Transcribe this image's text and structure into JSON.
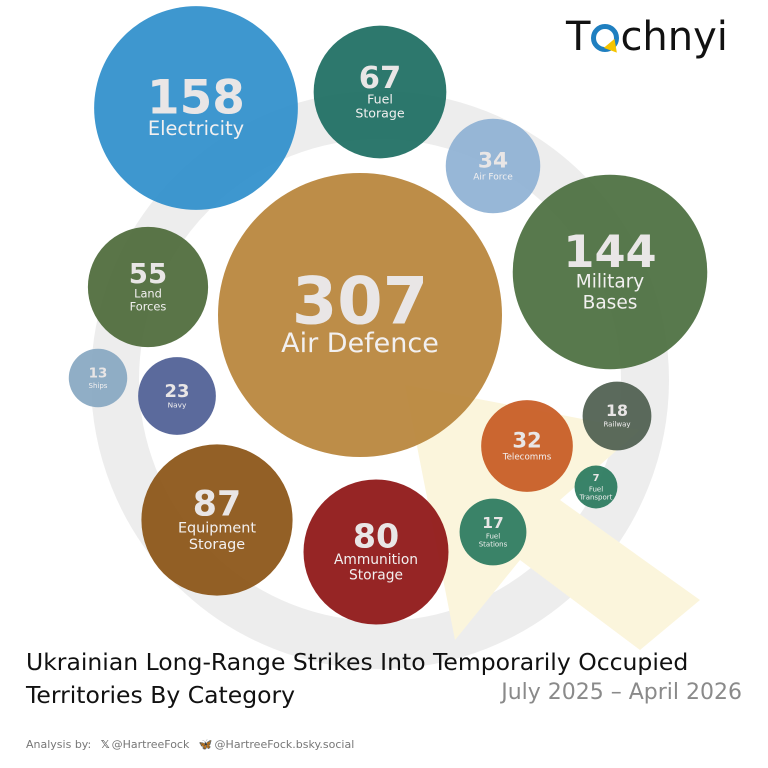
{
  "brand": {
    "logo_prefix": "T",
    "logo_suffix": "chnyi"
  },
  "footer": {
    "analysis_label": "Analysis by:",
    "x_icon": "x-icon",
    "x_handle": "@HartreeFock",
    "bsky_icon": "butterfly-icon",
    "bsky_handle": "@HartreeFock.bsky.social"
  },
  "chart_data": {
    "type": "bubble",
    "title": "Ukrainian Long-Range Strikes Into Temporarily Occupied Territories By Category",
    "subtitle": "July 2025 – April 2026",
    "bubbles": [
      {
        "label": "Air Defence",
        "value": 307,
        "color": "#b8843a"
      },
      {
        "label": "Electricity",
        "value": 158,
        "color": "#2f8fcb"
      },
      {
        "label": "Military Bases",
        "value": 144,
        "color": "#4b6f3f"
      },
      {
        "label": "Equipment Storage",
        "value": 87,
        "color": "#8b5416"
      },
      {
        "label": "Ammunition Storage",
        "value": 80,
        "color": "#8e1414"
      },
      {
        "label": "Fuel Storage",
        "value": 67,
        "color": "#1d6e62"
      },
      {
        "label": "Land Forces",
        "value": 55,
        "color": "#4d6b3a"
      },
      {
        "label": "Air Force",
        "value": 34,
        "color": "#8fb1d4"
      },
      {
        "label": "Telecomms",
        "value": 32,
        "color": "#c75a22"
      },
      {
        "label": "Navy",
        "value": 23,
        "color": "#4f5f94"
      },
      {
        "label": "Railway",
        "value": 18,
        "color": "#4f5f50"
      },
      {
        "label": "Fuel Stations",
        "value": 17,
        "color": "#2b7a5f"
      },
      {
        "label": "Ships",
        "value": 13,
        "color": "#88a8c2"
      },
      {
        "label": "Fuel Transport",
        "value": 7,
        "color": "#2a7a5e"
      }
    ]
  }
}
